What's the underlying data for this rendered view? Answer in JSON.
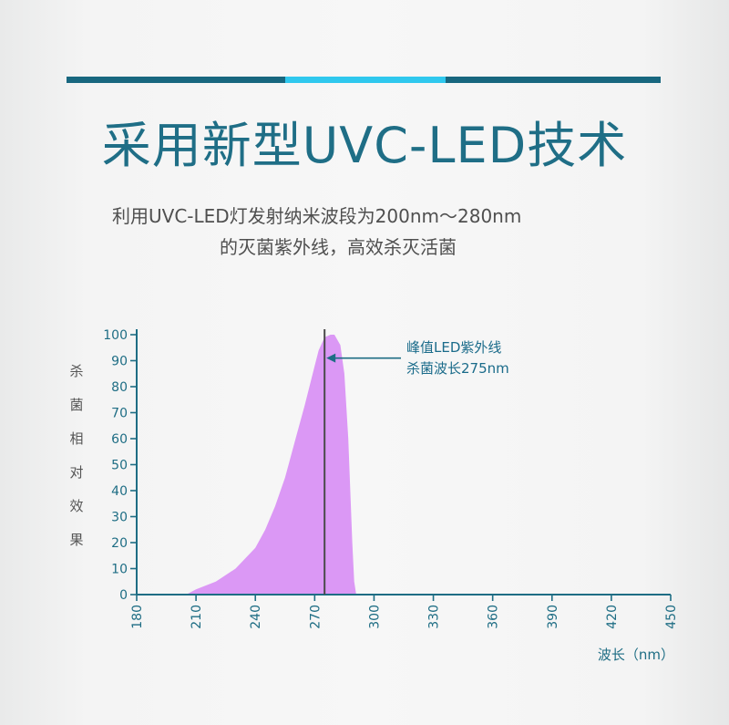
{
  "title": "采用新型UVC-LED技术",
  "subtitle": {
    "line1": "利用UVC-LED灯发射纳米波段为200nm～280nm",
    "line2": "的灭菌紫外线，高效杀灭活菌"
  },
  "colors": {
    "accent_dark": "#18677f",
    "accent_light": "#2fc8ee",
    "curve_fill": "#db98f5",
    "axis": "#1e6d84"
  },
  "chart_data": {
    "type": "area",
    "title": "",
    "xlabel": "波长（nm）",
    "ylabel": "杀菌相对效果",
    "xlim": [
      180,
      450
    ],
    "ylim": [
      0,
      100
    ],
    "x_ticks": [
      180,
      210,
      240,
      270,
      300,
      330,
      360,
      390,
      420,
      450
    ],
    "y_ticks": [
      0,
      10,
      20,
      30,
      40,
      50,
      60,
      70,
      80,
      90,
      100
    ],
    "series": [
      {
        "x": [
          205,
          210,
          220,
          230,
          240,
          245,
          250,
          255,
          260,
          265,
          270,
          272,
          275,
          278,
          280,
          283,
          285,
          287,
          288,
          289,
          290,
          291
        ],
        "y": [
          0,
          2,
          5,
          10,
          18,
          25,
          34,
          45,
          59,
          73,
          88,
          94,
          99,
          100,
          100,
          96,
          85,
          60,
          40,
          20,
          5,
          0
        ]
      }
    ],
    "peak_line_x": 275,
    "annotation": {
      "line1": "峰值LED紫外线",
      "line2": "杀菌波长275nm"
    },
    "grid": false,
    "legend": "none"
  }
}
